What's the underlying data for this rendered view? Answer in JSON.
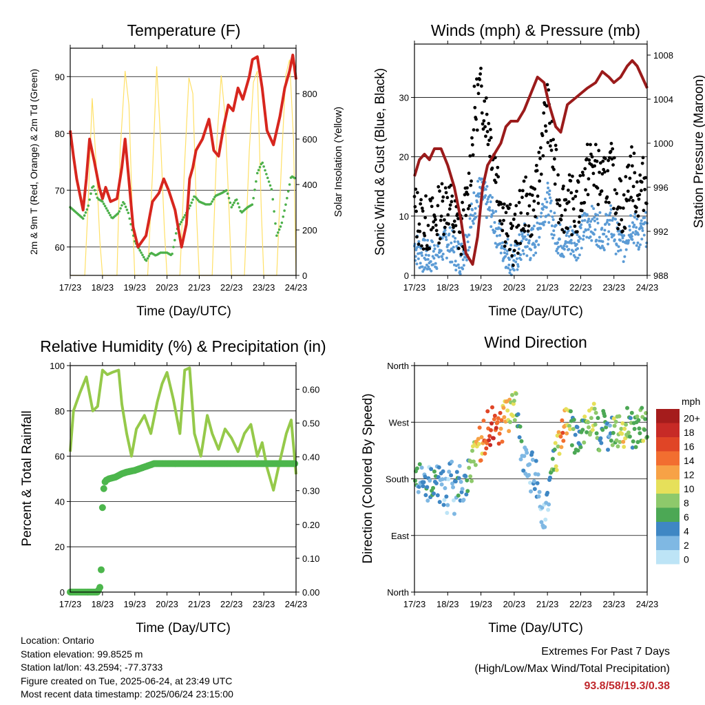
{
  "footer": {
    "location": "Location: Ontario",
    "elevation": "Station elevation: 99.8525 m",
    "latlon": "Station lat/lon: 43.2594; -77.3733",
    "created": "Figure created on Tue, 2025-06-24, at 23:49 UTC",
    "timestamp": "Most recent data timestamp: 2025/06/24 23:15:00",
    "extremes_title": "Extremes For Past 7 Days",
    "extremes_subtitle": "(High/Low/Max Wind/Total Precipitation)",
    "extremes_values": "93.8/58/19.3/0.38"
  },
  "colors": {
    "temperature": "#d7261e",
    "temperature_9m": "#f08a24",
    "dewpoint": "#4cb04a",
    "solar": "#ffe066",
    "wind": "#5b9bd5",
    "gust": "#000000",
    "pressure": "#9b1b1b",
    "rh": "#95c94a",
    "precip": "#4cb64c",
    "extremes": "#c0282d"
  },
  "chart_data": [
    {
      "type": "line",
      "title": "Temperature (F)",
      "xlabel": "Time (Day/UTC)",
      "ylabel": "2m & 9m T (Red, Orange) & 2m Td (Green)",
      "y2label": "Solar Insolation (Yellow)",
      "xticks": [
        "17/23",
        "18/23",
        "19/23",
        "20/23",
        "21/23",
        "22/23",
        "23/23",
        "24/23"
      ],
      "xlim": [
        0,
        7
      ],
      "ylim": [
        55,
        95
      ],
      "yticks": [
        60,
        70,
        80,
        90
      ],
      "y2lim": [
        0,
        1000
      ],
      "y2ticks": [
        0,
        200,
        400,
        600,
        800
      ],
      "grid": "horizontal",
      "series": [
        {
          "key": "temperature",
          "x": [
            0,
            0.1,
            0.2,
            0.4,
            0.5,
            0.6,
            0.75,
            0.9,
            1.0,
            1.1,
            1.25,
            1.45,
            1.6,
            1.7,
            1.8,
            1.95,
            2.1,
            2.35,
            2.55,
            2.75,
            2.9,
            3.05,
            3.25,
            3.45,
            3.6,
            3.7,
            3.8,
            3.9,
            4.1,
            4.3,
            4.45,
            4.6,
            4.75,
            4.9,
            5.05,
            5.2,
            5.35,
            5.55,
            5.65,
            5.8,
            5.95,
            6.1,
            6.3,
            6.5,
            6.65,
            6.8,
            6.9,
            7.0
          ],
          "y": [
            80.5,
            76,
            72,
            66.5,
            72,
            79,
            75,
            70.5,
            68.5,
            70.5,
            68,
            68.5,
            74,
            79,
            73,
            63.5,
            60,
            62,
            68,
            69.5,
            72,
            70,
            66.5,
            60,
            64,
            72,
            74,
            77,
            79,
            82.5,
            77,
            76,
            81,
            85,
            84,
            88,
            86,
            90,
            93,
            93.5,
            88,
            80.5,
            78,
            83,
            88,
            91,
            93.8,
            89.5
          ]
        },
        {
          "key": "dewpoint",
          "x": [
            0,
            0.2,
            0.4,
            0.55,
            0.7,
            0.85,
            1.0,
            1.15,
            1.3,
            1.5,
            1.65,
            1.8,
            2.0,
            2.2,
            2.35,
            2.5,
            2.65,
            2.8,
            3.0,
            3.15,
            3.3,
            3.5,
            3.7,
            3.85,
            4.0,
            4.2,
            4.35,
            4.5,
            4.7,
            4.85,
            5.0,
            5.15,
            5.3,
            5.5,
            5.65,
            5.8,
            5.95,
            6.1,
            6.25,
            6.4,
            6.55,
            6.7,
            6.85,
            7.0
          ],
          "y": [
            67,
            66,
            65,
            67,
            71,
            68.5,
            68,
            66.5,
            65,
            66,
            68,
            66,
            61,
            59,
            57.5,
            59,
            58.5,
            59,
            59,
            58.5,
            63,
            65,
            67,
            69,
            68,
            67.5,
            67.5,
            69,
            69.5,
            70,
            67,
            68.5,
            66,
            67,
            67.5,
            73,
            75,
            72.5,
            70,
            62,
            64,
            68,
            72.5,
            72
          ]
        },
        {
          "key": "solar_insolation",
          "axis": "y2",
          "x": [
            0,
            0.45,
            0.55,
            0.68,
            0.8,
            0.92,
            1.0,
            1.45,
            1.55,
            1.7,
            1.82,
            1.92,
            2.0,
            2.4,
            2.55,
            2.68,
            2.8,
            2.92,
            3.0,
            3.4,
            3.55,
            3.68,
            3.8,
            3.92,
            4.0,
            4.4,
            4.55,
            4.68,
            4.8,
            4.92,
            5.0,
            5.4,
            5.55,
            5.68,
            5.8,
            5.92,
            6.0,
            6.4,
            6.55,
            6.68,
            6.8,
            6.92,
            7.0
          ],
          "y": [
            0,
            0,
            300,
            780,
            500,
            150,
            0,
            0,
            550,
            900,
            750,
            300,
            0,
            0,
            450,
            920,
            600,
            200,
            0,
            0,
            500,
            870,
            800,
            250,
            0,
            0,
            600,
            880,
            700,
            300,
            0,
            0,
            550,
            850,
            900,
            300,
            0,
            0,
            500,
            880,
            950,
            600,
            0
          ]
        }
      ]
    },
    {
      "type": "scatter",
      "title": "Winds (mph) & Pressure (mb)",
      "xlabel": "Time (Day/UTC)",
      "ylabel": "Sonic Wind & Gust (Blue, Black)",
      "y2label": "Station Pressure (Maroon)",
      "xticks": [
        "17/23",
        "18/23",
        "19/23",
        "20/23",
        "21/23",
        "22/23",
        "23/23",
        "24/23"
      ],
      "xlim": [
        0,
        7
      ],
      "ylim": [
        0,
        39
      ],
      "yticks": [
        0,
        10,
        20,
        30
      ],
      "y2lim": [
        988,
        1009
      ],
      "y2ticks": [
        988,
        992,
        996,
        1000,
        1004,
        1008
      ],
      "grid": "horizontal",
      "series": [
        {
          "key": "gust",
          "x": [
            0,
            0.2,
            0.4,
            0.6,
            0.8,
            1.0,
            1.2,
            1.4,
            1.6,
            1.8,
            1.95,
            2.1,
            2.3,
            2.5,
            2.7,
            2.9,
            3.0,
            3.15,
            3.3,
            3.5,
            3.7,
            3.85,
            4.0,
            4.2,
            4.35,
            4.5,
            4.7,
            4.9,
            5.1,
            5.3,
            5.5,
            5.7,
            5.9,
            6.1,
            6.3,
            6.5,
            6.7,
            6.85,
            7.0
          ],
          "y": [
            11,
            9,
            8.5,
            9,
            11,
            13,
            9,
            7,
            12,
            27,
            31,
            29,
            23,
            16,
            10,
            7,
            6,
            9,
            12,
            11,
            14,
            24,
            28,
            19,
            13,
            12,
            12,
            11,
            16,
            19,
            17,
            15,
            18,
            13,
            11,
            18,
            14,
            15,
            17
          ]
        },
        {
          "key": "wind",
          "x": [
            0,
            0.2,
            0.4,
            0.6,
            0.8,
            1.0,
            1.2,
            1.4,
            1.6,
            1.8,
            1.95,
            2.1,
            2.3,
            2.5,
            2.7,
            2.9,
            3.0,
            3.15,
            3.3,
            3.5,
            3.7,
            3.85,
            4.0,
            4.2,
            4.35,
            4.5,
            4.7,
            4.9,
            5.1,
            5.3,
            5.5,
            5.7,
            5.9,
            6.1,
            6.3,
            6.5,
            6.7,
            6.85,
            7.0
          ],
          "y": [
            5,
            3.5,
            3,
            3.5,
            4.5,
            6,
            4,
            3,
            6,
            12,
            14,
            13,
            11,
            7,
            4.5,
            3,
            2.5,
            4,
            6,
            5,
            7,
            11,
            13,
            8,
            6,
            5.5,
            6,
            5.5,
            8,
            9,
            8,
            7,
            9,
            6,
            5,
            9,
            7,
            7,
            8
          ]
        },
        {
          "key": "pressure",
          "axis": "y2",
          "x": [
            0,
            0.15,
            0.3,
            0.45,
            0.6,
            0.8,
            1.0,
            1.2,
            1.4,
            1.55,
            1.75,
            1.9,
            2.05,
            2.2,
            2.4,
            2.6,
            2.75,
            2.9,
            3.1,
            3.3,
            3.5,
            3.7,
            3.9,
            4.05,
            4.25,
            4.4,
            4.6,
            4.8,
            5.0,
            5.2,
            5.45,
            5.65,
            5.85,
            6.0,
            6.2,
            6.4,
            6.55,
            6.7,
            6.85,
            7.0
          ],
          "y": [
            997,
            998.5,
            999,
            998.5,
            999.5,
            999.5,
            998,
            996,
            993,
            990,
            989,
            991.5,
            996,
            998,
            999,
            1000,
            1001.5,
            1002,
            1002,
            1003,
            1004.5,
            1006,
            1005.5,
            1003.5,
            1001.5,
            1001,
            1003.5,
            1004,
            1004.5,
            1005,
            1005.5,
            1006.5,
            1006,
            1005.5,
            1006,
            1007,
            1007.5,
            1007,
            1006,
            1005
          ]
        }
      ]
    },
    {
      "type": "line",
      "title": "Relative Humidity (%) & Precipitation (in)",
      "xlabel": "Time (Day/UTC)",
      "ylabel": "Percent & Total Rainfall",
      "xticks": [
        "17/23",
        "18/23",
        "19/23",
        "20/23",
        "21/23",
        "22/23",
        "23/23",
        "24/23"
      ],
      "xlim": [
        0,
        7
      ],
      "ylim": [
        0,
        100
      ],
      "yticks": [
        0,
        20,
        40,
        60,
        80,
        100
      ],
      "y2lim": [
        0,
        0.67
      ],
      "y2ticks": [
        0.0,
        0.1,
        0.2,
        0.3,
        0.4,
        0.5,
        0.6
      ],
      "grid": "horizontal",
      "series": [
        {
          "key": "relative_humidity",
          "x": [
            0,
            0.1,
            0.3,
            0.5,
            0.7,
            0.85,
            1.0,
            1.15,
            1.3,
            1.5,
            1.6,
            1.75,
            1.9,
            2.05,
            2.3,
            2.5,
            2.7,
            2.85,
            3.0,
            3.2,
            3.4,
            3.55,
            3.7,
            3.85,
            4.05,
            4.25,
            4.4,
            4.6,
            4.8,
            5.0,
            5.2,
            5.4,
            5.6,
            5.8,
            5.95,
            6.1,
            6.3,
            6.5,
            6.7,
            6.85,
            7.0
          ],
          "y": [
            62,
            80,
            88,
            95,
            80,
            82,
            98,
            96,
            97,
            98,
            83,
            70,
            60,
            72,
            78,
            70,
            84,
            92,
            97,
            85,
            70,
            98,
            99,
            70,
            60,
            78,
            70,
            63,
            72,
            68,
            62,
            70,
            74,
            60,
            66,
            55,
            45,
            58,
            70,
            76,
            52
          ]
        },
        {
          "key": "total_precipitation",
          "axis": "y2",
          "x": [
            0,
            0.3,
            0.6,
            0.85,
            0.95,
            1.0,
            1.05,
            1.1,
            1.2,
            1.4,
            1.6,
            1.75,
            2.0,
            2.3,
            2.6,
            3.0,
            4.0,
            5.0,
            6.0,
            7.0
          ],
          "y": [
            0,
            0,
            0,
            0,
            0.02,
            0.25,
            0.32,
            0.33,
            0.335,
            0.34,
            0.35,
            0.355,
            0.36,
            0.37,
            0.38,
            0.38,
            0.38,
            0.38,
            0.38,
            0.38
          ]
        }
      ]
    },
    {
      "type": "scatter",
      "title": "Wind Direction",
      "xlabel": "Time (Day/UTC)",
      "ylabel": "Direction (Colored By Speed)",
      "xticks": [
        "17/23",
        "18/23",
        "19/23",
        "20/23",
        "21/23",
        "22/23",
        "23/23",
        "24/23"
      ],
      "xlim": [
        0,
        7
      ],
      "ylim": [
        0,
        360
      ],
      "ycategories": [
        "North",
        "East",
        "South",
        "West",
        "North"
      ],
      "yticks": [
        0,
        90,
        180,
        270,
        360
      ],
      "grid": "horizontal",
      "colorbar": {
        "unit": "mph",
        "labels": [
          "20+",
          "18",
          "16",
          "14",
          "12",
          "10",
          "8",
          "6",
          "4",
          "2",
          "0"
        ],
        "colors": [
          "#a51c1c",
          "#c72a26",
          "#e04526",
          "#f26e30",
          "#f7a246",
          "#e6e05a",
          "#8ec96b",
          "#4ca855",
          "#3f87c4",
          "#7fb8e3",
          "#bde4f6"
        ]
      },
      "series": [
        {
          "key": "direction",
          "x": [
            0.05,
            0.15,
            0.25,
            0.35,
            0.45,
            0.55,
            0.65,
            0.75,
            0.9,
            1.0,
            1.1,
            1.2,
            1.3,
            1.45,
            1.6,
            1.75,
            1.9,
            2.05,
            2.2,
            2.35,
            2.5,
            2.65,
            2.8,
            2.95,
            3.05,
            3.15,
            3.3,
            3.45,
            3.6,
            3.75,
            3.9,
            4.05,
            4.2,
            4.35,
            4.5,
            4.65,
            4.8,
            4.95,
            5.1,
            5.25,
            5.4,
            5.55,
            5.7,
            5.85,
            6.0,
            6.15,
            6.3,
            6.45,
            6.6,
            6.75,
            6.9,
            7.0
          ],
          "y": [
            185,
            180,
            175,
            180,
            170,
            185,
            175,
            170,
            160,
            140,
            200,
            150,
            180,
            160,
            190,
            200,
            230,
            240,
            260,
            265,
            255,
            270,
            280,
            290,
            300,
            250,
            210,
            180,
            200,
            150,
            120,
            170,
            200,
            230,
            260,
            270,
            250,
            245,
            260,
            280,
            275,
            250,
            260,
            240,
            260,
            255,
            250,
            270,
            250,
            260,
            270,
            265
          ],
          "speed": [
            6,
            5,
            4,
            5,
            3,
            7,
            5,
            4,
            3,
            2,
            4,
            3,
            5,
            3,
            6,
            9,
            12,
            14,
            17,
            18,
            16,
            14,
            12,
            10,
            9,
            6,
            3,
            2,
            5,
            3,
            2,
            4,
            8,
            12,
            15,
            10,
            6,
            5,
            8,
            10,
            9,
            7,
            6,
            5,
            9,
            10,
            11,
            8,
            6,
            7,
            9,
            8
          ]
        }
      ]
    }
  ]
}
